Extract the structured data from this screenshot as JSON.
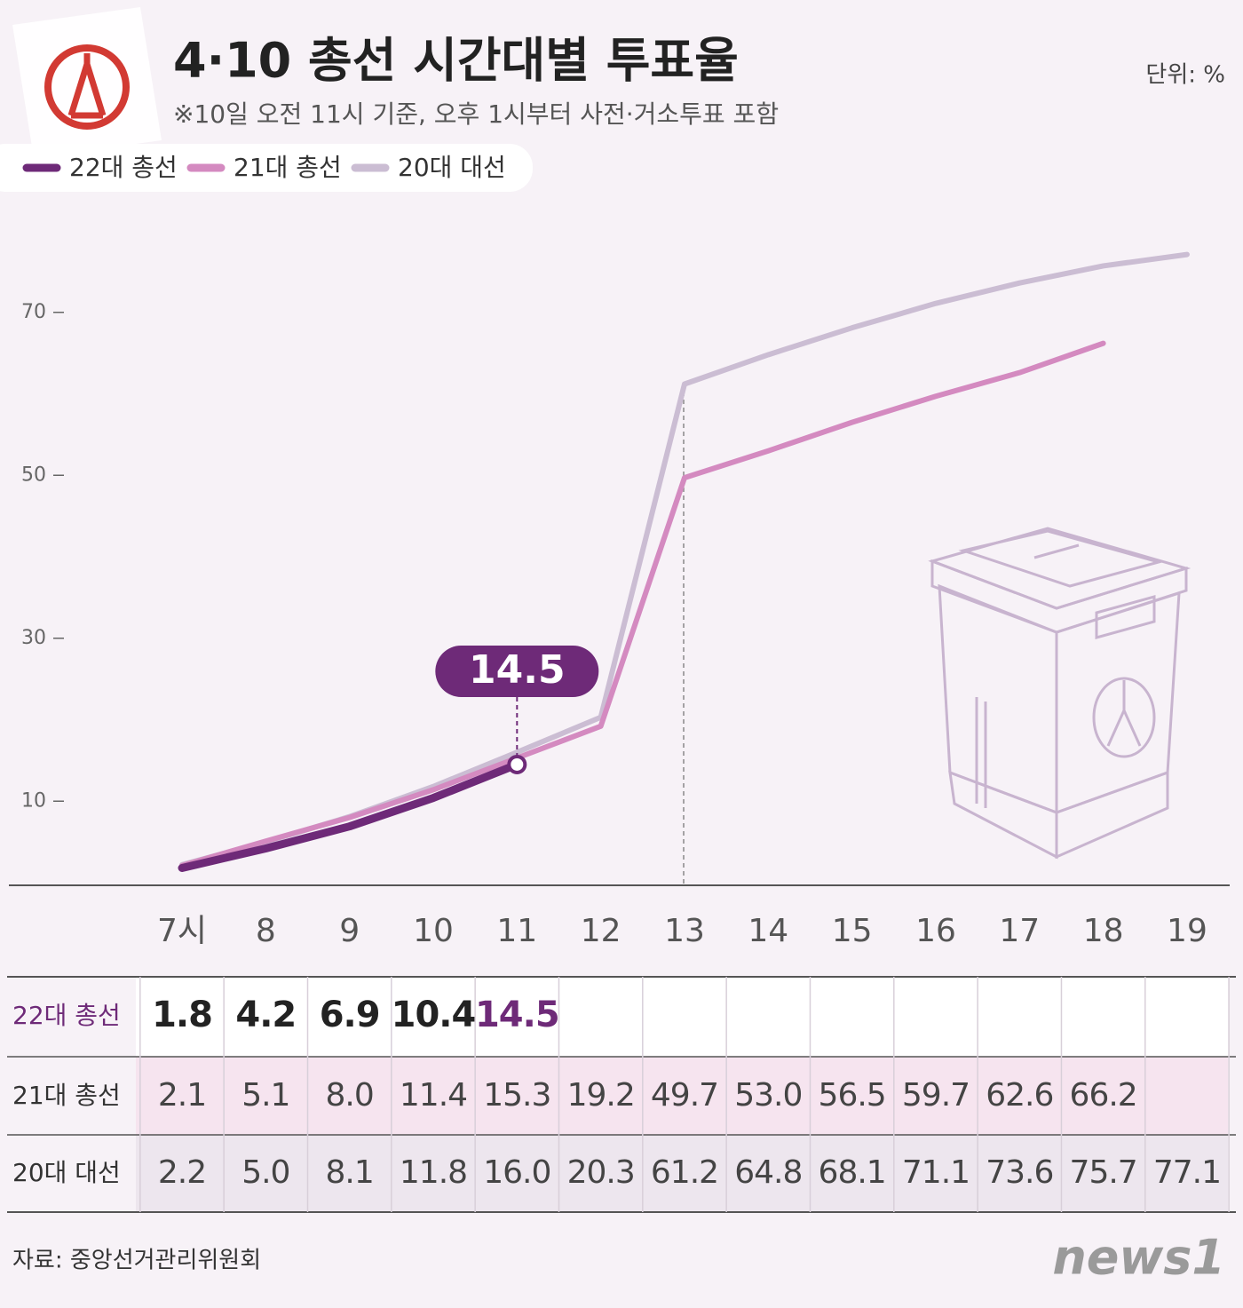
{
  "chart_data": {
    "type": "line",
    "title": "4·10 총선 시간대별 투표율",
    "subtitle": "※10일 오전 11시 기준, 오후 1시부터 사전·거소투표 포함",
    "unit": "단위: %",
    "source": "자료: 중앙선거관리위원회",
    "logo": "news1",
    "categories": [
      "7시",
      "8",
      "9",
      "10",
      "11",
      "12",
      "13",
      "14",
      "15",
      "16",
      "17",
      "18",
      "19"
    ],
    "series": [
      {
        "name": "22대 총선",
        "color": "#6e2a78",
        "values": [
          1.8,
          4.2,
          6.9,
          10.4,
          14.5,
          null,
          null,
          null,
          null,
          null,
          null,
          null,
          null
        ],
        "value_labels": [
          "1.8",
          "4.2",
          "6.9",
          "10.4",
          "14.5",
          null,
          null,
          null,
          null,
          null,
          null,
          null,
          null
        ]
      },
      {
        "name": "21대 총선",
        "color": "#d48ac0",
        "values": [
          2.1,
          5.1,
          8.0,
          11.4,
          15.3,
          19.2,
          49.7,
          53.0,
          56.5,
          59.7,
          62.6,
          66.2,
          null
        ],
        "value_labels": [
          "2.1",
          "5.1",
          "8.0",
          "11.4",
          "15.3",
          "19.2",
          "49.7",
          "53.0",
          "56.5",
          "59.7",
          "62.6",
          "66.2",
          null
        ]
      },
      {
        "name": "20대 대선",
        "color": "#cbbdd3",
        "values": [
          2.2,
          5.0,
          8.1,
          11.8,
          16.0,
          20.3,
          61.2,
          64.8,
          68.1,
          71.1,
          73.6,
          75.7,
          77.1
        ],
        "value_labels": [
          "2.2",
          "5.0",
          "8.1",
          "11.8",
          "16.0",
          "20.3",
          "61.2",
          "64.8",
          "68.1",
          "71.1",
          "73.6",
          "75.7",
          "77.1"
        ]
      }
    ],
    "ylim": [
      0,
      80
    ],
    "yticks": [
      10,
      30,
      50,
      70
    ]
  }
}
